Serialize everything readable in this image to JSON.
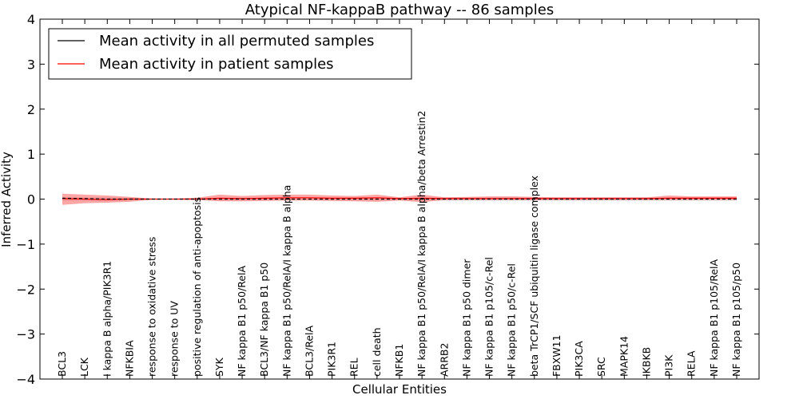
{
  "chart_data": {
    "type": "line",
    "title": "Atypical NF-kappaB pathway -- 86 samples",
    "xlabel": "Cellular Entities",
    "ylabel": "Inferred Activity",
    "ylim": [
      -4,
      4
    ],
    "yticks": [
      "−4",
      "−3",
      "−2",
      "−1",
      "0",
      "1",
      "2",
      "3",
      "4"
    ],
    "grid": false,
    "legend_position": "top-left",
    "categories": [
      "BCL3",
      "LCK",
      "I kappa B alpha/PIK3R1",
      "NFKBIA",
      "response to oxidative stress",
      "response to UV",
      "positive regulation of anti-apoptosis",
      "SYK",
      "NF kappa B1 p50/RelA",
      "BCL3/NF kappa B1 p50",
      "NF kappa B1 p50/RelA/I kappa B alpha",
      "BCL3/RelA",
      "PIK3R1",
      "REL",
      "cell death",
      "NFKB1",
      "NF kappa B1 p50/RelA/I kappa B alpha/beta Arrestin2",
      "ARRB2",
      "NF kappa B1 p50 dimer",
      "NF kappa B1 p105/c-Rel",
      "NF kappa B1 p50/c-Rel",
      "beta TrCP1/SCF ubiquitin ligase complex",
      "FBXW11",
      "PIK3CA",
      "SRC",
      "MAPK14",
      "IKBKB",
      "PI3K",
      "RELA",
      "NF kappa B1 p105/RelA",
      "NF kappa B1 p105/p50"
    ],
    "series": [
      {
        "name": "Mean activity in all permuted samples",
        "color": "#000000",
        "values": [
          0.02,
          0.01,
          0.0,
          0.0,
          0.0,
          0.0,
          0.0,
          0.0,
          0.0,
          0.0,
          0.0,
          0.0,
          0.0,
          0.0,
          0.0,
          0.0,
          0.0,
          0.0,
          0.0,
          0.0,
          0.0,
          0.0,
          0.0,
          0.0,
          0.0,
          0.0,
          0.0,
          0.0,
          0.0,
          0.0,
          0.0
        ],
        "band_lower": [
          -0.04,
          -0.04,
          -0.04,
          -0.03,
          -0.01,
          -0.01,
          -0.02,
          -0.03,
          -0.03,
          -0.03,
          -0.03,
          -0.03,
          -0.03,
          -0.03,
          -0.03,
          -0.03,
          -0.03,
          -0.04,
          -0.04,
          -0.04,
          -0.04,
          -0.04,
          -0.04,
          -0.04,
          -0.04,
          -0.04,
          -0.04,
          -0.04,
          -0.04,
          -0.04,
          -0.04
        ],
        "band_upper": [
          0.04,
          0.04,
          0.04,
          0.03,
          0.01,
          0.01,
          0.02,
          0.03,
          0.03,
          0.03,
          0.03,
          0.03,
          0.03,
          0.03,
          0.03,
          0.03,
          0.03,
          0.04,
          0.04,
          0.04,
          0.04,
          0.04,
          0.04,
          0.04,
          0.04,
          0.04,
          0.04,
          0.04,
          0.04,
          0.04,
          0.04
        ]
      },
      {
        "name": "Mean activity in patient samples",
        "color": "#ff0000",
        "values": [
          0.01,
          0.0,
          -0.01,
          0.0,
          0.0,
          0.0,
          0.0,
          0.02,
          0.01,
          0.02,
          0.03,
          0.03,
          0.02,
          0.02,
          0.03,
          0.01,
          0.02,
          0.01,
          0.01,
          0.01,
          0.01,
          0.01,
          0.01,
          0.01,
          0.01,
          0.01,
          0.01,
          0.02,
          0.02,
          0.02,
          0.02
        ],
        "band_lower": [
          -0.13,
          -0.09,
          -0.08,
          -0.06,
          -0.01,
          -0.01,
          -0.02,
          -0.05,
          -0.05,
          -0.04,
          -0.03,
          -0.03,
          -0.04,
          -0.05,
          -0.06,
          -0.03,
          -0.07,
          -0.02,
          -0.02,
          -0.02,
          -0.02,
          -0.02,
          -0.02,
          -0.02,
          -0.02,
          -0.02,
          -0.02,
          -0.02,
          -0.02,
          -0.02,
          -0.02
        ],
        "band_upper": [
          0.12,
          0.1,
          0.08,
          0.05,
          0.01,
          0.01,
          0.03,
          0.1,
          0.07,
          0.09,
          0.1,
          0.1,
          0.08,
          0.07,
          0.1,
          0.04,
          0.1,
          0.04,
          0.05,
          0.06,
          0.06,
          0.05,
          0.04,
          0.04,
          0.04,
          0.04,
          0.04,
          0.08,
          0.06,
          0.06,
          0.06
        ]
      }
    ]
  }
}
